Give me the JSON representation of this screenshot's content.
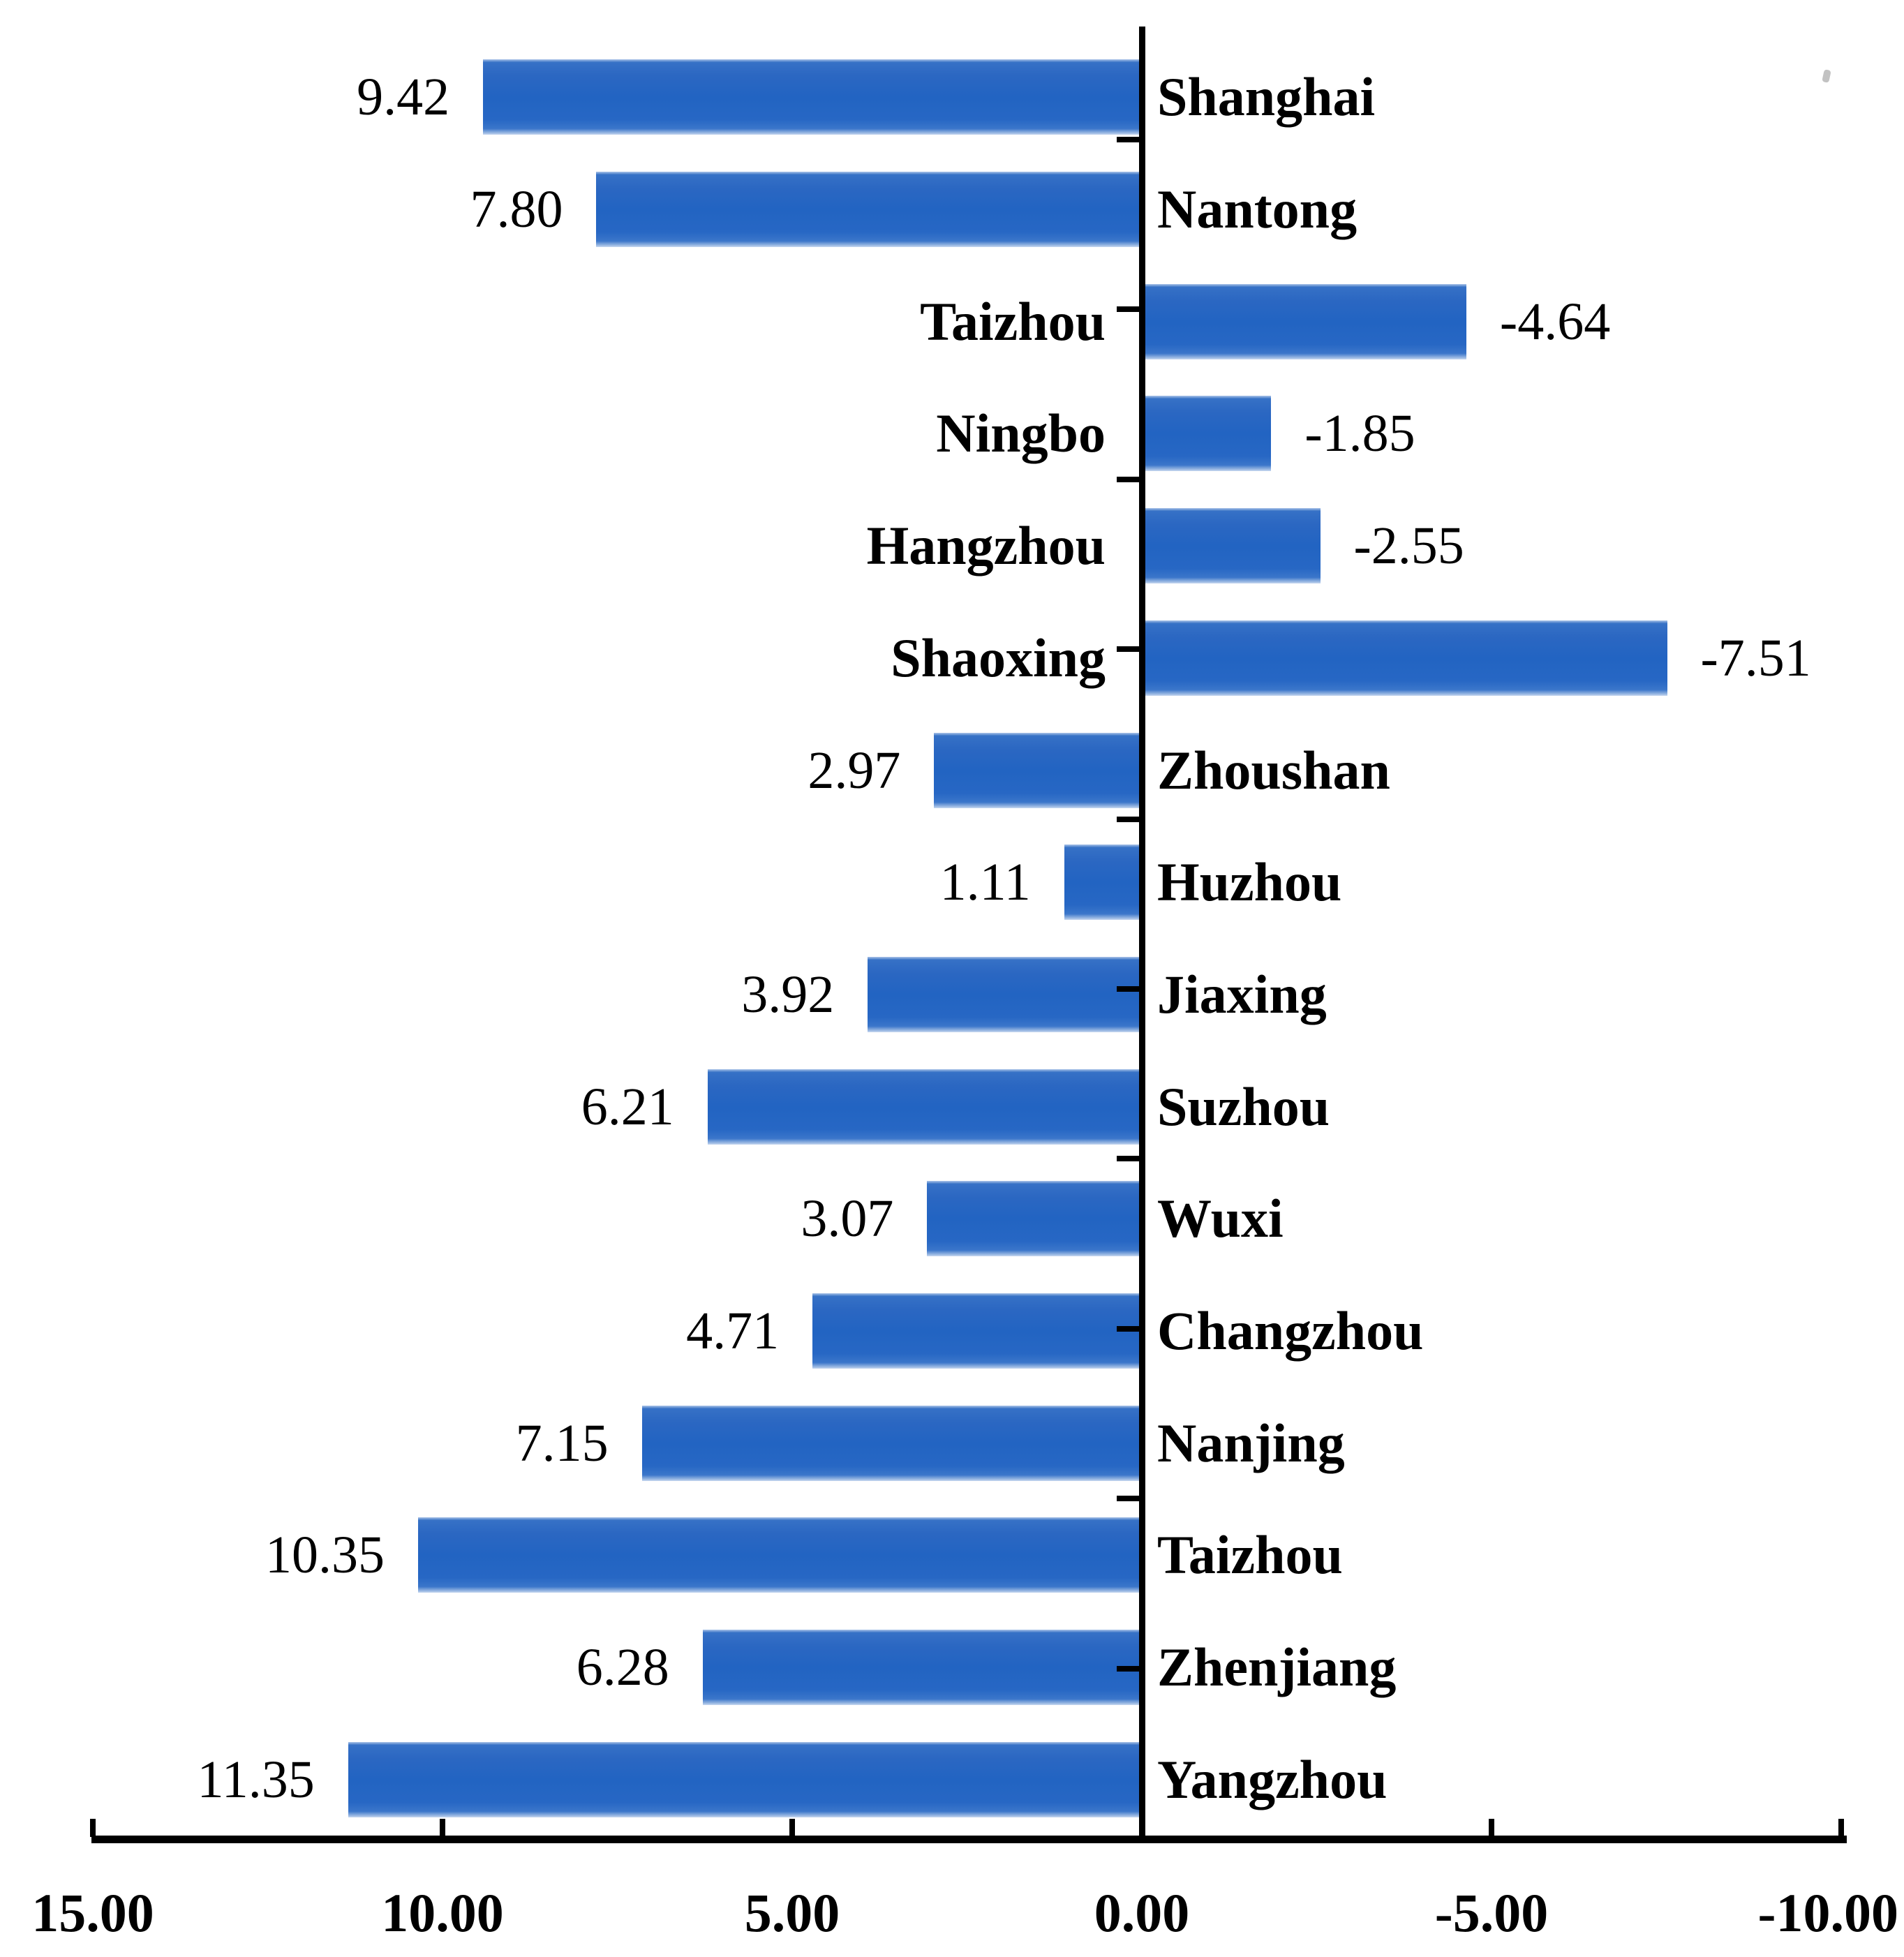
{
  "chart_data": {
    "type": "bar",
    "orientation": "horizontal",
    "title": "",
    "categories": [
      "Shanghai",
      "Nantong",
      "Taizhou",
      "Ningbo",
      "Hangzhou",
      "Shaoxing",
      "Zhoushan",
      "Huzhou",
      "Jiaxing",
      "Suzhou",
      "Wuxi",
      "Changzhou",
      "Nanjing",
      "Taizhou",
      "Zhenjiang",
      "Yangzhou"
    ],
    "values": [
      9.42,
      7.8,
      -4.64,
      -1.85,
      -2.55,
      -7.51,
      2.97,
      1.11,
      3.92,
      6.21,
      3.07,
      4.71,
      7.15,
      10.35,
      6.28,
      11.35
    ],
    "value_labels": [
      "9.42",
      "7.80",
      "-4.64",
      "-1.85",
      "-2.55",
      "-7.51",
      "2.97",
      "1.11",
      "3.92",
      "6.21",
      "3.07",
      "4.71",
      "7.15",
      "10.35",
      "6.28",
      "11.35"
    ],
    "x_axis": {
      "ticks": [
        "15.00",
        "10.00",
        "5.00",
        "0.00",
        "-5.00",
        "-10.00"
      ],
      "tick_values": [
        15,
        10,
        5,
        0,
        -5,
        -10
      ],
      "min": -10,
      "max": 15,
      "reversed": true
    },
    "grid": false,
    "legend": "none",
    "colors": {
      "bar": "#2264c2",
      "axis": "#000000",
      "text": "#000000"
    }
  }
}
